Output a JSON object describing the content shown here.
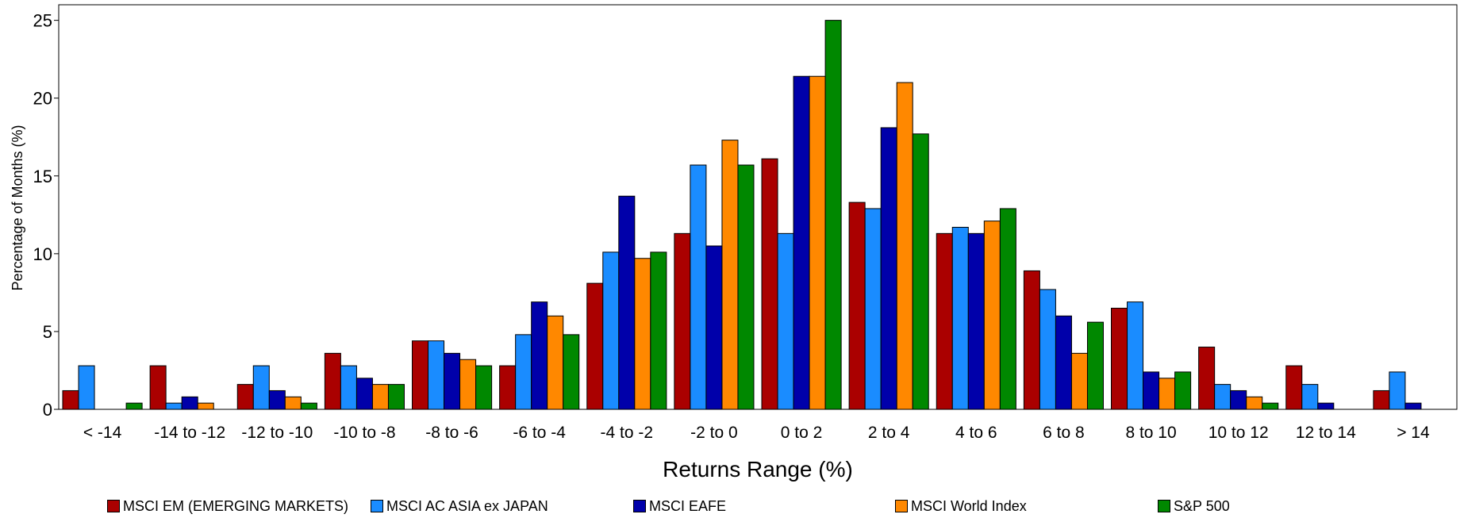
{
  "chart_data": {
    "type": "bar",
    "title": "",
    "xlabel": "Returns Range (%)",
    "ylabel": "Percentage of Months (%)",
    "ylim": [
      0,
      26
    ],
    "yticks": [
      0,
      5,
      10,
      15,
      20,
      25
    ],
    "grid": false,
    "legend_position": "bottom",
    "categories": [
      "< -14",
      "-14 to -12",
      "-12 to -10",
      "-10 to -8",
      "-8 to -6",
      "-6 to -4",
      "-4 to -2",
      "-2 to 0",
      "0 to 2",
      "2 to 4",
      "4 to 6",
      "6 to 8",
      "8 to 10",
      "10 to 12",
      "12 to 14",
      "> 14"
    ],
    "series": [
      {
        "name": "MSCI EM (EMERGING MARKETS)",
        "color": "#aa0000",
        "values": [
          1.2,
          2.8,
          1.6,
          3.6,
          4.4,
          2.8,
          8.1,
          11.3,
          16.1,
          13.3,
          11.3,
          8.9,
          6.5,
          4.0,
          2.8,
          1.2
        ]
      },
      {
        "name": "MSCI AC ASIA ex JAPAN",
        "color": "#1a8cff",
        "values": [
          2.8,
          0.4,
          2.8,
          2.8,
          4.4,
          4.8,
          10.1,
          15.7,
          11.3,
          12.9,
          11.7,
          7.7,
          6.9,
          1.6,
          1.6,
          2.4
        ]
      },
      {
        "name": "MSCI EAFE",
        "color": "#0000aa",
        "values": [
          0,
          0.8,
          1.2,
          2.0,
          3.6,
          6.9,
          13.7,
          10.5,
          21.4,
          18.1,
          11.3,
          6.0,
          2.4,
          1.2,
          0.4,
          0.4
        ]
      },
      {
        "name": "MSCI World Index",
        "color": "#ff8800",
        "values": [
          0,
          0.4,
          0.8,
          1.6,
          3.2,
          6.0,
          9.7,
          17.3,
          21.4,
          21.0,
          12.1,
          3.6,
          2.0,
          0.8,
          0,
          0
        ]
      },
      {
        "name": "S&P 500",
        "color": "#008800",
        "values": [
          0.4,
          0,
          0.4,
          1.6,
          2.8,
          4.8,
          10.1,
          15.7,
          25.0,
          17.7,
          12.9,
          5.6,
          2.4,
          0.4,
          0,
          0
        ]
      }
    ]
  }
}
